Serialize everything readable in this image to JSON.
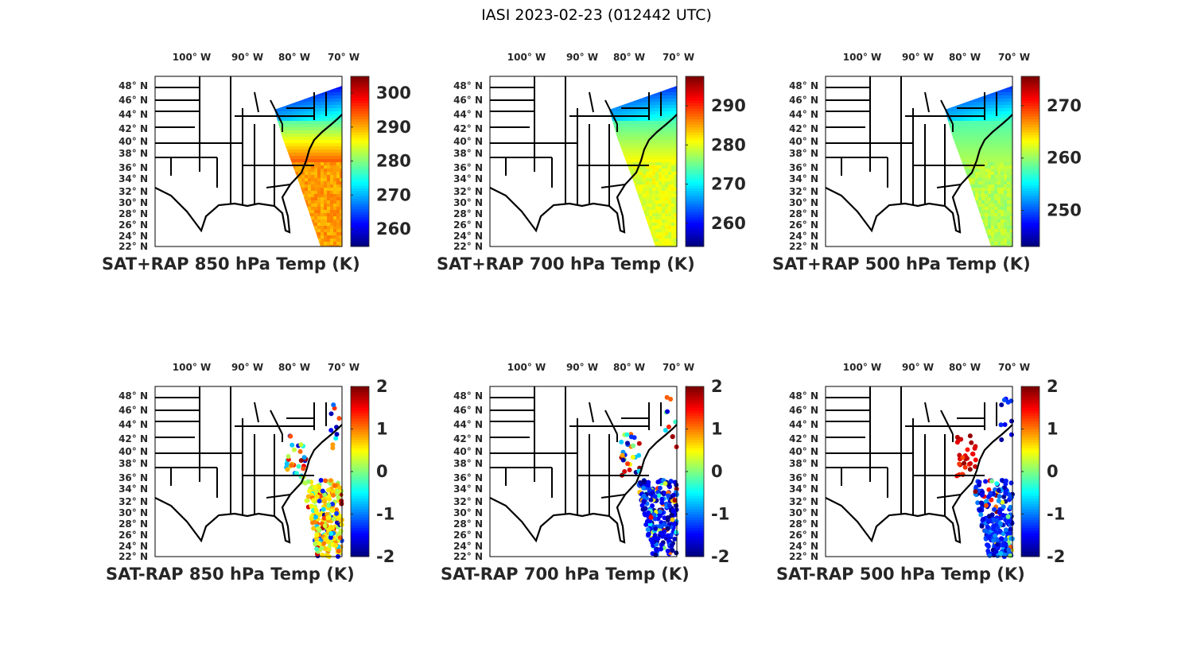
{
  "figure_title": "IASI 2023-02-23 (012442 UTC)",
  "lon_ticks": [
    "100° W",
    "90° W",
    "80° W",
    "70° W"
  ],
  "lat_ticks": [
    "48° N",
    "46° N",
    "44° N",
    "42° N",
    "40° N",
    "38° N",
    "36° N",
    "34° N",
    "32° N",
    "30° N",
    "28° N",
    "26° N",
    "24° N",
    "22° N"
  ],
  "colormap": "jet",
  "chart_data": [
    {
      "type": "heatmap",
      "title": "SAT+RAP 850 hPa Temp (K)",
      "colorbar": {
        "range": [
          254.9,
          304.9
        ],
        "ticks": [
          260,
          270,
          280,
          290,
          300
        ]
      },
      "field_description": "swath"
    },
    {
      "type": "heatmap",
      "title": "SAT+RAP 700 hPa Temp (K)",
      "colorbar": {
        "range": [
          254.1,
          297.5
        ],
        "ticks": [
          260,
          270,
          280,
          290
        ]
      },
      "field_description": "swath"
    },
    {
      "type": "heatmap",
      "title": "SAT+RAP 500 hPa Temp (K)",
      "colorbar": {
        "range": [
          243.1,
          275.6
        ],
        "ticks": [
          250,
          260,
          270
        ]
      },
      "field_description": "swath"
    },
    {
      "type": "scatter",
      "title": "SAT-RAP 850 hPa Temp (K)",
      "colorbar": {
        "range": [
          -2,
          2
        ],
        "ticks": [
          -2,
          -1,
          0,
          1,
          2
        ]
      }
    },
    {
      "type": "scatter",
      "title": "SAT-RAP 700 hPa Temp (K)",
      "colorbar": {
        "range": [
          -2,
          2
        ],
        "ticks": [
          -2,
          -1,
          0,
          1,
          2
        ]
      }
    },
    {
      "type": "scatter",
      "title": "SAT-RAP 500 hPa Temp (K)",
      "colorbar": {
        "range": [
          -2,
          2
        ],
        "ticks": [
          -2,
          -1,
          0,
          1,
          2
        ]
      }
    }
  ]
}
